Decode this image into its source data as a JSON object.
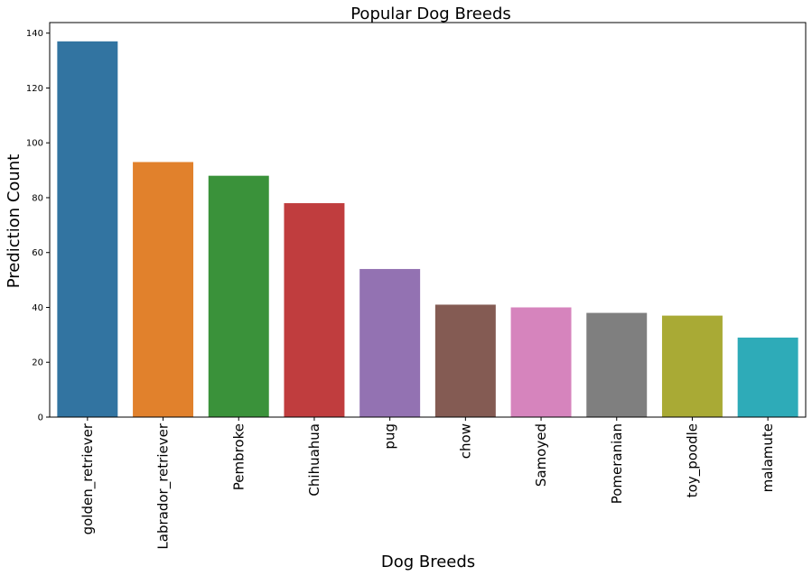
{
  "chart_data": {
    "type": "bar",
    "title": "Popular Dog Breeds",
    "xlabel": "Dog Breeds",
    "ylabel": "Prediction Count",
    "categories": [
      "golden_retriever",
      "Labrador_retriever",
      "Pembroke",
      "Chihuahua",
      "pug",
      "chow",
      "Samoyed",
      "Pomeranian",
      "toy_poodle",
      "malamute"
    ],
    "values": [
      137,
      93,
      88,
      78,
      54,
      41,
      40,
      38,
      37,
      29
    ],
    "colors": [
      "#3274a1",
      "#e1812c",
      "#3a923a",
      "#c03d3e",
      "#9372b2",
      "#845b53",
      "#d684bd",
      "#7f7f7f",
      "#a9aa35",
      "#2eabb8"
    ],
    "ylim": [
      0,
      143.85
    ],
    "yticks": [
      0,
      20,
      40,
      60,
      80,
      100,
      120,
      140
    ],
    "grid": false,
    "legend": "none"
  }
}
